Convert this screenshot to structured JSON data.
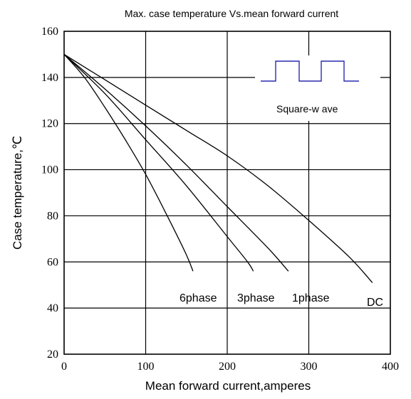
{
  "chart_data": {
    "type": "line",
    "title": "Max. case temperature  Vs.mean forward current",
    "xlabel": "Mean forward  current,amperes",
    "ylabel": "Case temperature,℃",
    "xlim": [
      0,
      400
    ],
    "ylim": [
      20,
      160
    ],
    "xticks": [
      "0",
      "100",
      "200",
      "300",
      "400"
    ],
    "yticks": [
      "20",
      "40",
      "60",
      "80",
      "100",
      "120",
      "140",
      "160"
    ],
    "grid": true,
    "series": [
      {
        "name": "6phase",
        "x": [
          0,
          25,
          50,
          75,
          100,
          125,
          150,
          158
        ],
        "y": [
          150,
          140,
          127,
          113,
          98,
          81,
          63,
          56
        ]
      },
      {
        "name": "3phase",
        "x": [
          0,
          50,
          100,
          150,
          200,
          225,
          232
        ],
        "y": [
          150,
          133,
          113,
          93,
          71,
          60,
          56
        ]
      },
      {
        "name": "1phase",
        "x": [
          0,
          50,
          100,
          150,
          200,
          250,
          275
        ],
        "y": [
          150,
          135,
          119,
          102,
          84,
          66,
          56
        ]
      },
      {
        "name": "DC",
        "x": [
          0,
          50,
          100,
          150,
          200,
          250,
          300,
          350,
          378
        ],
        "y": [
          150,
          139,
          128,
          117,
          106,
          93,
          78,
          62,
          51
        ]
      }
    ],
    "inset": {
      "label": "Square-w ave"
    }
  }
}
